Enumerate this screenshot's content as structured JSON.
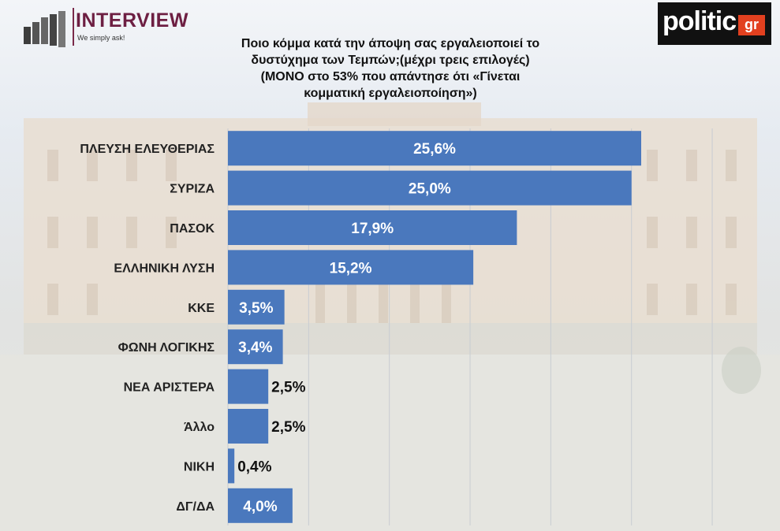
{
  "header": {
    "brand_left": {
      "name": "INTERVIEW",
      "tagline": "We simply ask!"
    },
    "brand_right": {
      "name": "politic",
      "suffix": "gr"
    }
  },
  "chart_data": {
    "type": "bar",
    "orientation": "horizontal",
    "title_lines": [
      "Ποιο κόμμα κατά την άποψη σας εργαλειοποιεί το",
      "δυστύχημα των Τεμπών;(μέχρι τρεις επιλογές)",
      "(ΜΟΝΟ στο 53% που απάντησε ότι «Γίνεται",
      "κομματική εργαλειοποίηση»)"
    ],
    "categories": [
      "ΠΛΕΥΣΗ ΕΛΕΥΘΕΡΙΑΣ",
      "ΣΥΡΙΖΑ",
      "ΠΑΣΟΚ",
      "ΕΛΛΗΝΙΚΗ ΛΥΣΗ",
      "ΚΚΕ",
      "ΦΩΝΗ ΛΟΓΙΚΗΣ",
      "ΝΕΑ ΑΡΙΣΤΕΡΑ",
      "Άλλο",
      "ΝΙΚΗ",
      "ΔΓ/ΔΑ"
    ],
    "values": [
      25.6,
      25.0,
      17.9,
      15.2,
      3.5,
      3.4,
      2.5,
      2.5,
      0.4,
      4.0
    ],
    "value_labels": [
      "25,6%",
      "25,0%",
      "17,9%",
      "15,2%",
      "3,5%",
      "3,4%",
      "2,5%",
      "2,5%",
      "0,4%",
      "4,0%"
    ],
    "xlim": [
      0,
      35
    ],
    "grid": true,
    "bar_color": "#4a78bd"
  }
}
